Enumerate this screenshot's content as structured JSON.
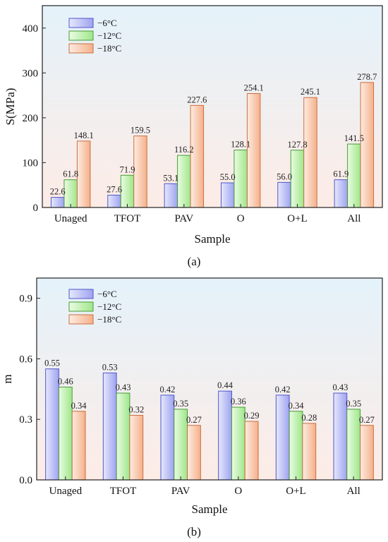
{
  "chart_data": [
    {
      "type": "bar",
      "panel_label": "(a)",
      "categories": [
        "Unaged",
        "TFOT",
        "PAV",
        "O",
        "O+L",
        "All"
      ],
      "series": [
        {
          "name": "−6°C",
          "values": [
            22.6,
            27.6,
            53.1,
            55.0,
            56.0,
            61.9
          ]
        },
        {
          "name": "−12°C",
          "values": [
            61.8,
            71.9,
            116.2,
            128.1,
            127.8,
            141.5
          ]
        },
        {
          "name": "−18°C",
          "values": [
            148.1,
            159.5,
            227.6,
            254.1,
            245.1,
            278.7
          ]
        }
      ],
      "data_labels": [
        [
          "22.6",
          "27.6",
          "53.1",
          "55.0",
          "56.0",
          "61.9"
        ],
        [
          "61.8",
          "71.9",
          "116.2",
          "128.1",
          "127.8",
          "141.5"
        ],
        [
          "148.1",
          "159.5",
          "227.6",
          "254.1",
          "245.1",
          "278.7"
        ]
      ],
      "xlabel": "Sample",
      "ylabel": "S(MPa)",
      "ylim": [
        0,
        450
      ],
      "yticks": [
        "0",
        "100",
        "200",
        "300",
        "400"
      ],
      "ytick_values": [
        0,
        100,
        200,
        300,
        400
      ],
      "legend_position": "top-left",
      "grid": false
    },
    {
      "type": "bar",
      "panel_label": "(b)",
      "categories": [
        "Unaged",
        "TFOT",
        "PAV",
        "O",
        "O+L",
        "All"
      ],
      "series": [
        {
          "name": "−6°C",
          "values": [
            0.55,
            0.53,
            0.42,
            0.44,
            0.42,
            0.43
          ]
        },
        {
          "name": "−12°C",
          "values": [
            0.46,
            0.43,
            0.35,
            0.36,
            0.34,
            0.35
          ]
        },
        {
          "name": "−18°C",
          "values": [
            0.34,
            0.32,
            0.27,
            0.29,
            0.28,
            0.27
          ]
        }
      ],
      "data_labels": [
        [
          "0.55",
          "0.53",
          "0.42",
          "0.44",
          "0.42",
          "0.43"
        ],
        [
          "0.46",
          "0.43",
          "0.35",
          "0.36",
          "0.34",
          "0.35"
        ],
        [
          "0.34",
          "0.32",
          "0.27",
          "0.29",
          "0.28",
          "0.27"
        ]
      ],
      "xlabel": "Sample",
      "ylabel": "m",
      "ylim": [
        0,
        1.0
      ],
      "yticks": [
        "0.0",
        "0.3",
        "0.6",
        "0.9"
      ],
      "ytick_values": [
        0,
        0.3,
        0.6,
        0.9
      ],
      "legend_position": "top-left",
      "grid": false
    }
  ],
  "colors": {
    "series_fill": [
      "#b0b4f4",
      "#b6f0a4",
      "#f8c4a6"
    ],
    "series_stroke": [
      "#5058c8",
      "#4a9c3a",
      "#c87040"
    ],
    "background_top": "#e4f2fa",
    "background_bottom": "#fdece6"
  }
}
